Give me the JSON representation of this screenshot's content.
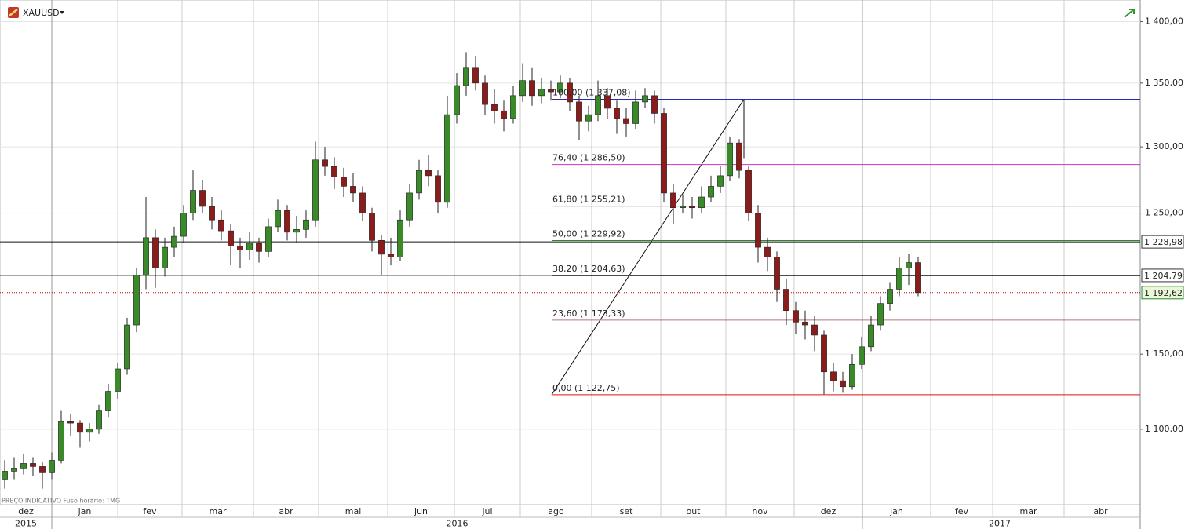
{
  "chart_data": {
    "type": "candlestick",
    "symbol": "XAUUSD",
    "footer": "PREÇO INDICATIVO   Fuso horário: TMG",
    "log_scale": true,
    "grid": true,
    "ylim": [
      1052,
      1418
    ],
    "xlim": [
      -0.5,
      120.25
    ],
    "up_color": "#3a8a2a",
    "down_color": "#8b1c1c",
    "yticks": [
      {
        "value": 1400,
        "label": "1 400,00"
      },
      {
        "value": 1350,
        "label": "1 350,00"
      },
      {
        "value": 1300,
        "label": "1 300,00"
      },
      {
        "value": 1250,
        "label": "1 250,00"
      },
      {
        "value": 1150,
        "label": "1 150,00"
      },
      {
        "value": 1100,
        "label": "1 100,00"
      }
    ],
    "xticks": [
      {
        "value": -0.5,
        "label": "dez"
      },
      {
        "value": 5,
        "label": "jan"
      },
      {
        "value": 12,
        "label": "fev"
      },
      {
        "value": 18.83,
        "label": "mar"
      },
      {
        "value": 26.42,
        "label": "abr"
      },
      {
        "value": 33.33,
        "label": "mai"
      },
      {
        "value": 40.67,
        "label": "jun"
      },
      {
        "value": 47.75,
        "label": "jul"
      },
      {
        "value": 54.75,
        "label": "ago"
      },
      {
        "value": 62.33,
        "label": "set"
      },
      {
        "value": 69.67,
        "label": "out"
      },
      {
        "value": 76.58,
        "label": "nov"
      },
      {
        "value": 83.83,
        "label": "dez"
      },
      {
        "value": 91.08,
        "label": "jan"
      },
      {
        "value": 98.33,
        "label": "fev"
      },
      {
        "value": 104.92,
        "label": "mar"
      },
      {
        "value": 112.5,
        "label": "abr"
      }
    ],
    "year_ticks": [
      {
        "value": -0.5,
        "label": "2015"
      },
      {
        "value": 5,
        "label": "2016"
      },
      {
        "value": 91.08,
        "label": "2017"
      }
    ],
    "fib_levels": [
      {
        "value": 1337.08,
        "label": "100,00 (1 337,08)",
        "color": "#2a2ab8"
      },
      {
        "value": 1286.5,
        "label": "76,40 (1 286,50)",
        "color": "#cc33cc"
      },
      {
        "value": 1255.21,
        "label": "61,80 (1 255,21)",
        "color": "#7a1a7a"
      },
      {
        "value": 1229.92,
        "label": "50,00 (1 229,92)",
        "color": "#2a8a2a"
      },
      {
        "value": 1204.63,
        "label": "38,20 (1 204,63)",
        "color": "#111111"
      },
      {
        "value": 1173.33,
        "label": "23,60 (1 173,33)",
        "color": "#b07878"
      },
      {
        "value": 1122.75,
        "label": "0,00 (1 122,75)",
        "color": "#e01010"
      }
    ],
    "price_lines": [
      {
        "value": 1228.98,
        "label": "1 228,98"
      },
      {
        "value": 1204.79,
        "label": "1 204,79"
      }
    ],
    "last_price": {
      "value": 1192.62,
      "label": "1 192,62",
      "color": "#c00000"
    },
    "ohlc": [
      [
        1068,
        1080,
        1062,
        1073
      ],
      [
        1073,
        1082,
        1068,
        1075
      ],
      [
        1075,
        1084,
        1071,
        1078
      ],
      [
        1078,
        1082,
        1070,
        1076
      ],
      [
        1076,
        1079,
        1062,
        1072
      ],
      [
        1072,
        1085,
        1068,
        1080
      ],
      [
        1080,
        1112,
        1078,
        1105
      ],
      [
        1105,
        1110,
        1096,
        1104
      ],
      [
        1104,
        1106,
        1088,
        1098
      ],
      [
        1098,
        1104,
        1092,
        1100
      ],
      [
        1100,
        1116,
        1097,
        1112
      ],
      [
        1112,
        1130,
        1108,
        1125
      ],
      [
        1125,
        1144,
        1120,
        1140
      ],
      [
        1140,
        1175,
        1136,
        1170
      ],
      [
        1170,
        1210,
        1165,
        1205
      ],
      [
        1205,
        1262,
        1195,
        1232
      ],
      [
        1232,
        1238,
        1196,
        1210
      ],
      [
        1210,
        1232,
        1204,
        1225
      ],
      [
        1225,
        1240,
        1218,
        1233
      ],
      [
        1233,
        1256,
        1228,
        1250
      ],
      [
        1250,
        1282,
        1245,
        1267
      ],
      [
        1267,
        1275,
        1250,
        1255
      ],
      [
        1255,
        1262,
        1238,
        1245
      ],
      [
        1245,
        1252,
        1230,
        1237
      ],
      [
        1237,
        1242,
        1212,
        1226
      ],
      [
        1226,
        1232,
        1210,
        1223
      ],
      [
        1223,
        1236,
        1216,
        1228
      ],
      [
        1228,
        1232,
        1214,
        1222
      ],
      [
        1222,
        1246,
        1218,
        1240
      ],
      [
        1240,
        1260,
        1236,
        1252
      ],
      [
        1252,
        1256,
        1230,
        1236
      ],
      [
        1236,
        1248,
        1228,
        1238
      ],
      [
        1238,
        1252,
        1232,
        1245
      ],
      [
        1245,
        1304,
        1240,
        1290
      ],
      [
        1290,
        1300,
        1278,
        1285
      ],
      [
        1285,
        1292,
        1268,
        1277
      ],
      [
        1277,
        1284,
        1262,
        1270
      ],
      [
        1270,
        1280,
        1258,
        1265
      ],
      [
        1265,
        1270,
        1244,
        1250
      ],
      [
        1250,
        1254,
        1222,
        1230
      ],
      [
        1230,
        1234,
        1205,
        1220
      ],
      [
        1220,
        1232,
        1212,
        1218
      ],
      [
        1218,
        1252,
        1215,
        1245
      ],
      [
        1245,
        1272,
        1240,
        1265
      ],
      [
        1265,
        1290,
        1260,
        1282
      ],
      [
        1282,
        1294,
        1270,
        1278
      ],
      [
        1278,
        1282,
        1250,
        1258
      ],
      [
        1258,
        1340,
        1254,
        1325
      ],
      [
        1325,
        1358,
        1318,
        1348
      ],
      [
        1348,
        1375,
        1340,
        1362
      ],
      [
        1362,
        1372,
        1344,
        1350
      ],
      [
        1350,
        1356,
        1325,
        1333
      ],
      [
        1333,
        1345,
        1318,
        1328
      ],
      [
        1328,
        1336,
        1312,
        1322
      ],
      [
        1322,
        1348,
        1318,
        1340
      ],
      [
        1340,
        1366,
        1335,
        1352
      ],
      [
        1352,
        1362,
        1332,
        1340
      ],
      [
        1340,
        1354,
        1334,
        1345
      ],
      [
        1345,
        1352,
        1336,
        1343
      ],
      [
        1343,
        1356,
        1338,
        1350
      ],
      [
        1350,
        1354,
        1328,
        1335
      ],
      [
        1335,
        1340,
        1305,
        1320
      ],
      [
        1320,
        1332,
        1312,
        1325
      ],
      [
        1325,
        1352,
        1320,
        1340
      ],
      [
        1340,
        1346,
        1322,
        1330
      ],
      [
        1330,
        1336,
        1310,
        1322
      ],
      [
        1322,
        1330,
        1308,
        1318
      ],
      [
        1318,
        1344,
        1314,
        1335
      ],
      [
        1335,
        1346,
        1330,
        1340
      ],
      [
        1340,
        1344,
        1318,
        1326
      ],
      [
        1326,
        1330,
        1258,
        1265
      ],
      [
        1265,
        1272,
        1242,
        1254
      ],
      [
        1254,
        1264,
        1250,
        1255
      ],
      [
        1255,
        1262,
        1246,
        1254
      ],
      [
        1254,
        1270,
        1250,
        1262
      ],
      [
        1262,
        1278,
        1258,
        1270
      ],
      [
        1270,
        1285,
        1265,
        1278
      ],
      [
        1278,
        1308,
        1274,
        1303
      ],
      [
        1303,
        1306,
        1276,
        1282
      ],
      [
        1282,
        1285,
        1244,
        1250
      ],
      [
        1250,
        1256,
        1214,
        1225
      ],
      [
        1225,
        1232,
        1208,
        1218
      ],
      [
        1218,
        1222,
        1186,
        1195
      ],
      [
        1195,
        1202,
        1170,
        1180
      ],
      [
        1180,
        1186,
        1164,
        1172
      ],
      [
        1172,
        1180,
        1160,
        1170
      ],
      [
        1170,
        1176,
        1152,
        1163
      ],
      [
        1163,
        1166,
        1123,
        1138
      ],
      [
        1138,
        1144,
        1125,
        1132
      ],
      [
        1132,
        1138,
        1124,
        1128
      ],
      [
        1128,
        1150,
        1126,
        1143
      ],
      [
        1143,
        1162,
        1140,
        1155
      ],
      [
        1155,
        1176,
        1152,
        1170
      ],
      [
        1170,
        1190,
        1166,
        1185
      ],
      [
        1185,
        1200,
        1180,
        1195
      ],
      [
        1195,
        1218,
        1190,
        1210
      ],
      [
        1210,
        1220,
        1198,
        1214
      ],
      [
        1214,
        1218,
        1190,
        1192.62
      ]
    ]
  }
}
